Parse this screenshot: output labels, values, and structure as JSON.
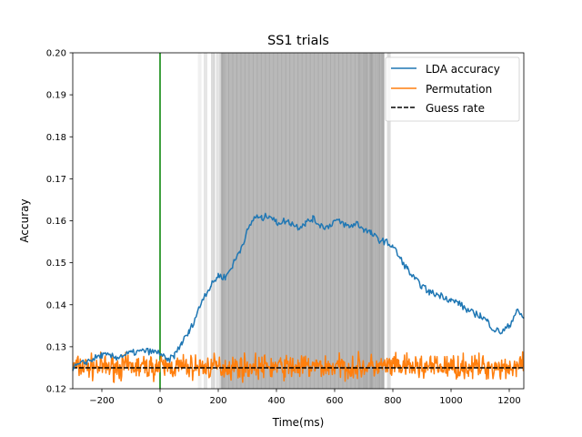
{
  "chart_data": {
    "type": "line",
    "title": "SS1 trials",
    "xlabel": "Time(ms)",
    "ylabel": "Accuray",
    "xlim": [
      -300,
      1250
    ],
    "ylim": [
      0.12,
      0.2
    ],
    "x_ticks": [
      -200,
      0,
      200,
      400,
      600,
      800,
      1000,
      1200
    ],
    "x_tick_labels": [
      "−200",
      "0",
      "200",
      "400",
      "600",
      "800",
      "1000",
      "1200"
    ],
    "y_ticks": [
      0.12,
      0.13,
      0.14,
      0.15,
      0.16,
      0.17,
      0.18,
      0.19,
      0.2
    ],
    "y_tick_labels": [
      "0.12",
      "0.13",
      "0.14",
      "0.15",
      "0.16",
      "0.17",
      "0.18",
      "0.19",
      "0.20"
    ],
    "legend_position": "top-right",
    "legend": [
      {
        "label": "LDA accuracy",
        "color": "#1f77b4",
        "style": "solid"
      },
      {
        "label": "Permutation",
        "color": "#ff7f0e",
        "style": "solid"
      },
      {
        "label": "Guess rate",
        "color": "#000000",
        "style": "dashed"
      }
    ],
    "onset_line": {
      "x": 0,
      "color": "#008000"
    },
    "guess_rate": {
      "y": 0.125,
      "color": "#000000"
    },
    "significance_shading": {
      "color": "#808080",
      "core_interval": [
        210,
        770
      ],
      "edge_segments_left": [
        130,
        150,
        175,
        185,
        195,
        205
      ],
      "edge_segments_right": [
        680,
        700,
        720,
        745,
        760,
        780
      ]
    },
    "series": [
      {
        "name": "LDA accuracy",
        "color": "#1f77b4",
        "x": [
          -300,
          -250,
          -200,
          -150,
          -100,
          -50,
          0,
          25,
          50,
          75,
          100,
          125,
          150,
          175,
          200,
          225,
          250,
          275,
          300,
          325,
          350,
          375,
          400,
          425,
          450,
          475,
          500,
          525,
          550,
          575,
          600,
          625,
          650,
          675,
          700,
          725,
          750,
          775,
          800,
          825,
          850,
          875,
          900,
          925,
          950,
          975,
          1000,
          1025,
          1050,
          1075,
          1100,
          1125,
          1150,
          1175,
          1200,
          1225,
          1250
        ],
        "values": [
          0.125,
          0.1265,
          0.128,
          0.1275,
          0.1285,
          0.129,
          0.1285,
          0.1265,
          0.128,
          0.131,
          0.1335,
          0.1375,
          0.142,
          0.1445,
          0.147,
          0.1465,
          0.1495,
          0.153,
          0.1575,
          0.161,
          0.1605,
          0.1615,
          0.1595,
          0.16,
          0.1595,
          0.1585,
          0.1595,
          0.1605,
          0.159,
          0.1585,
          0.16,
          0.1595,
          0.1585,
          0.1595,
          0.158,
          0.157,
          0.1555,
          0.155,
          0.154,
          0.151,
          0.1485,
          0.146,
          0.1445,
          0.143,
          0.1425,
          0.142,
          0.141,
          0.1405,
          0.139,
          0.138,
          0.1375,
          0.136,
          0.134,
          0.1335,
          0.135,
          0.1385,
          0.137
        ]
      },
      {
        "name": "Permutation",
        "color": "#ff7f0e",
        "x": [
          -300,
          1250
        ],
        "values": [
          0.125,
          0.125
        ],
        "note_range": [
          0.1215,
          0.1295
        ]
      },
      {
        "name": "Guess rate",
        "color": "#000000",
        "x": [
          -300,
          1250
        ],
        "values": [
          0.125,
          0.125
        ]
      }
    ]
  }
}
